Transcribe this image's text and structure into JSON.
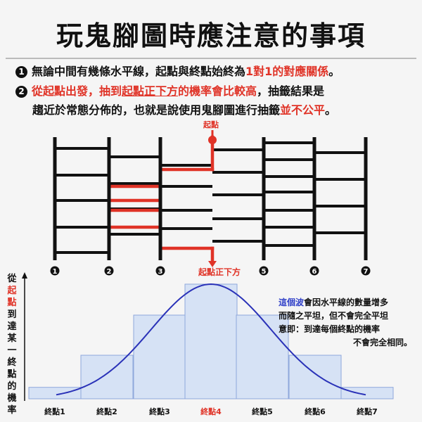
{
  "title": "玩鬼腳圖時應注意的事項",
  "note1": {
    "number": "1",
    "text_a": "無論中間有幾條水平線，起點與終點始終為",
    "highlight": "1對1的對應關係",
    "text_b": "。"
  },
  "note2": {
    "number": "2",
    "part1": "從起點出發，抽到",
    "part2": "起點正下方",
    "part3": "的機率會比較高",
    "part4": "，抽籤結果是",
    "line2_a": "趨近於常態分佈的，也就是說使用鬼腳圖進行抽籤",
    "line2_highlight": "並不公平",
    "line2_b": "。"
  },
  "ladder": {
    "start_label": "起點",
    "below_label": "起點正下方",
    "column_numbers": [
      "1",
      "2",
      "3",
      "",
      "5",
      "6",
      "7"
    ],
    "start_column": 4,
    "colors": {
      "line": "#111111",
      "path": "#e03327"
    }
  },
  "distribution": {
    "side_label_chars": [
      "從",
      "起",
      "點",
      "到",
      "達",
      "某",
      "一",
      "終",
      "點",
      "的",
      "機",
      "率"
    ],
    "side_label_red_indexes": [
      1,
      2
    ],
    "categories": [
      "終點1",
      "終點2",
      "終點3",
      "終點4",
      "終點5",
      "終點6",
      "終點7"
    ],
    "highlight_category": "終點4",
    "relative_probability": [
      0.1,
      0.38,
      0.73,
      1.0,
      0.73,
      0.38,
      0.1
    ],
    "colors": {
      "bar_fill": "#d6e2f5",
      "bar_stroke": "#8fa8dc",
      "curve": "#2a32b8",
      "highlight": "#e03327"
    }
  },
  "wave_note": {
    "blue_word": "這個波",
    "line1_rest": "會因水平線的數量增多",
    "line2": "而隨之平坦，但不會完全平坦",
    "line3": "意即：到達每個終點的機率",
    "line4": "不會完全相同。"
  }
}
